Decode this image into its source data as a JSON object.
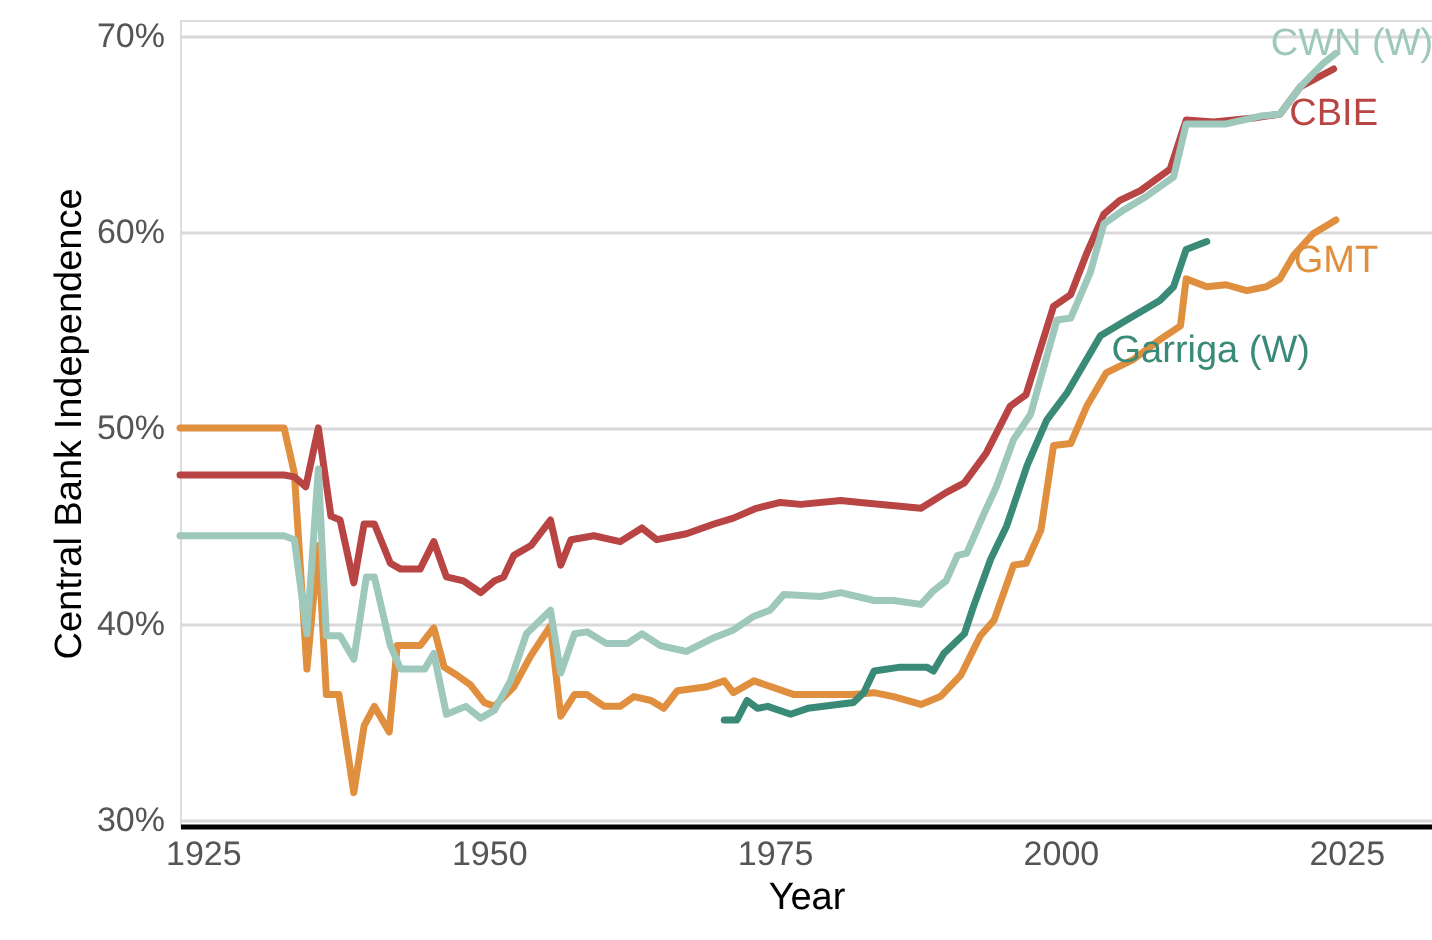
{
  "chart_data": {
    "type": "line",
    "xlabel": "Year",
    "ylabel": "Central Bank Independence",
    "xlim": [
      1923,
      2032.5
    ],
    "xticks": [
      1925,
      1950,
      1975,
      2000,
      2025
    ],
    "ylim": [
      29.7,
      70.8
    ],
    "yticks": [
      {
        "value": 30,
        "label": "30%"
      },
      {
        "value": 40,
        "label": "40%"
      },
      {
        "value": 50,
        "label": "50%"
      },
      {
        "value": 60,
        "label": "60%"
      },
      {
        "value": 70,
        "label": "70%"
      }
    ],
    "grid": "y",
    "line_style": "solid",
    "marker": "none",
    "series": [
      {
        "name": "GMT",
        "color": "#e08f3e",
        "x": [
          1923,
          1932.1,
          1933,
          1934.1,
          1935.1,
          1935.8,
          1936.9,
          1938.2,
          1939.1,
          1940,
          1941.3,
          1942,
          1944,
          1945.2,
          1946.1,
          1947.2,
          1948.4,
          1949.6,
          1950.5,
          1952.2,
          1953.7,
          1955.4,
          1956.3,
          1957.5,
          1958.6,
          1960.1,
          1961.5,
          1962.7,
          1964.2,
          1965.3,
          1966.5,
          1969.1,
          1970.6,
          1971.4,
          1973.2,
          1976.7,
          1979.5,
          1981.9,
          1983.7,
          1985.4,
          1987.8,
          1989.5,
          1991.3,
          1993,
          1994.2,
          1995.9,
          1997,
          1998.3,
          1999.4,
          2000.9,
          2002.3,
          2004,
          2006.4,
          2008.7,
          2010.5,
          2011,
          2012.8,
          2014.5,
          2016.3,
          2018,
          2019.2,
          2020.4,
          2022.1,
          2024.1
        ],
        "values": [
          50,
          50,
          47.7,
          37.7,
          44,
          36.4,
          36.4,
          31.4,
          34.8,
          35.8,
          34.5,
          38.9,
          38.9,
          39.8,
          37.8,
          37.4,
          36.9,
          36,
          35.8,
          36.8,
          38.4,
          39.9,
          35.3,
          36.4,
          36.4,
          35.8,
          35.8,
          36.3,
          36.1,
          35.7,
          36.6,
          36.8,
          37.1,
          36.5,
          37.1,
          36.4,
          36.4,
          36.4,
          36.5,
          36.3,
          35.9,
          36.3,
          37.4,
          39.4,
          40.2,
          43,
          43.1,
          44.8,
          49.1,
          49.2,
          51.1,
          52.8,
          53.5,
          54.5,
          55.2,
          57.6,
          57.2,
          57.3,
          57,
          57.2,
          57.6,
          58.8,
          59.9,
          60.6
        ]
      },
      {
        "name": "CBIE",
        "color": "#b84444",
        "x": [
          1923,
          1932.1,
          1933,
          1934,
          1935.1,
          1936.2,
          1937,
          1938.2,
          1939.1,
          1940,
          1941.4,
          1942.3,
          1944,
          1945.2,
          1946.3,
          1947.8,
          1949.3,
          1950.5,
          1951.3,
          1952.2,
          1953.7,
          1955.4,
          1956.3,
          1957.2,
          1959.2,
          1961.5,
          1963.4,
          1964.7,
          1967.3,
          1969.7,
          1971.4,
          1973.4,
          1975.5,
          1977.3,
          1980.8,
          1982.5,
          1987.8,
          1990,
          1991.6,
          1993.5,
          1995.6,
          1997,
          1999.4,
          2000.9,
          2002.3,
          2003.8,
          2005.2,
          2007,
          2009.6,
          2011,
          2013.4,
          2016.9,
          2019.2,
          2021,
          2023.9
        ],
        "values": [
          47.6,
          47.6,
          47.5,
          47,
          50,
          45.5,
          45.3,
          42.1,
          45.1,
          45.1,
          43.1,
          42.8,
          42.8,
          44.2,
          42.4,
          42.2,
          41.6,
          42.2,
          42.4,
          43.5,
          44,
          45.3,
          43,
          44.3,
          44.5,
          44.2,
          44.9,
          44.3,
          44.6,
          45.1,
          45.4,
          45.9,
          46.2,
          46.1,
          46.3,
          46.2,
          45.9,
          46.7,
          47.2,
          48.7,
          51.1,
          51.7,
          56.2,
          56.8,
          58.9,
          60.9,
          61.6,
          62.1,
          63.2,
          65.7,
          65.6,
          65.8,
          66,
          67.4,
          68.3
        ]
      },
      {
        "name": "CWN (W)",
        "color": "#9dc8bb",
        "x": [
          1923,
          1932.1,
          1933,
          1934.1,
          1935.1,
          1935.8,
          1937,
          1938.2,
          1939.3,
          1940,
          1941.4,
          1942.3,
          1944.4,
          1945.2,
          1946.3,
          1948,
          1949.3,
          1950.5,
          1951.9,
          1953.3,
          1955.4,
          1956.3,
          1957.5,
          1958.6,
          1960.3,
          1962.1,
          1963.4,
          1965,
          1967.3,
          1969.7,
          1971.4,
          1973.2,
          1974.6,
          1975.8,
          1979,
          1980.8,
          1983.7,
          1985.4,
          1987.8,
          1988.9,
          1990,
          1991,
          1991.8,
          1993.3,
          1994.4,
          1995.9,
          1997.4,
          1999.7,
          2000.9,
          2002.6,
          2003.8,
          2005.5,
          2007.5,
          2009.9,
          2011,
          2014.5,
          2017.5,
          2019.2,
          2021,
          2023,
          2024.1
        ],
        "values": [
          44.5,
          44.5,
          44.3,
          39.5,
          47.9,
          39.4,
          39.4,
          38.2,
          42.4,
          42.4,
          38.9,
          37.7,
          37.7,
          38.5,
          35.4,
          35.8,
          35.2,
          35.6,
          37.1,
          39.5,
          40.7,
          37.5,
          39.5,
          39.6,
          39,
          39,
          39.5,
          38.9,
          38.6,
          39.3,
          39.7,
          40.4,
          40.7,
          41.5,
          41.4,
          41.6,
          41.2,
          41.2,
          41,
          41.7,
          42.2,
          43.5,
          43.6,
          45.6,
          47,
          49.4,
          50.7,
          55.5,
          55.6,
          57.9,
          60.4,
          61.1,
          61.8,
          62.8,
          65.5,
          65.5,
          65.9,
          66,
          67.4,
          68.6,
          69.1
        ]
      },
      {
        "name": "Garriga (W)",
        "color": "#3a8a78",
        "x": [
          1970.6,
          1971.7,
          1972.6,
          1973.5,
          1974.4,
          1976.4,
          1977.9,
          1981.9,
          1982.8,
          1983.7,
          1986,
          1988.3,
          1988.9,
          1989.8,
          1991.6,
          1992.4,
          1993.9,
          1995.3,
          1997.1,
          1998.8,
          2000.6,
          2003.5,
          2005.8,
          2008.7,
          2009.9,
          2011,
          2012.8
        ],
        "values": [
          35.1,
          35.1,
          36.1,
          35.7,
          35.8,
          35.4,
          35.7,
          36,
          36.5,
          37.6,
          37.8,
          37.8,
          37.6,
          38.5,
          39.5,
          40.9,
          43.3,
          45,
          48.1,
          50.4,
          51.8,
          54.7,
          55.5,
          56.5,
          57.2,
          59.1,
          59.5
        ]
      }
    ]
  }
}
